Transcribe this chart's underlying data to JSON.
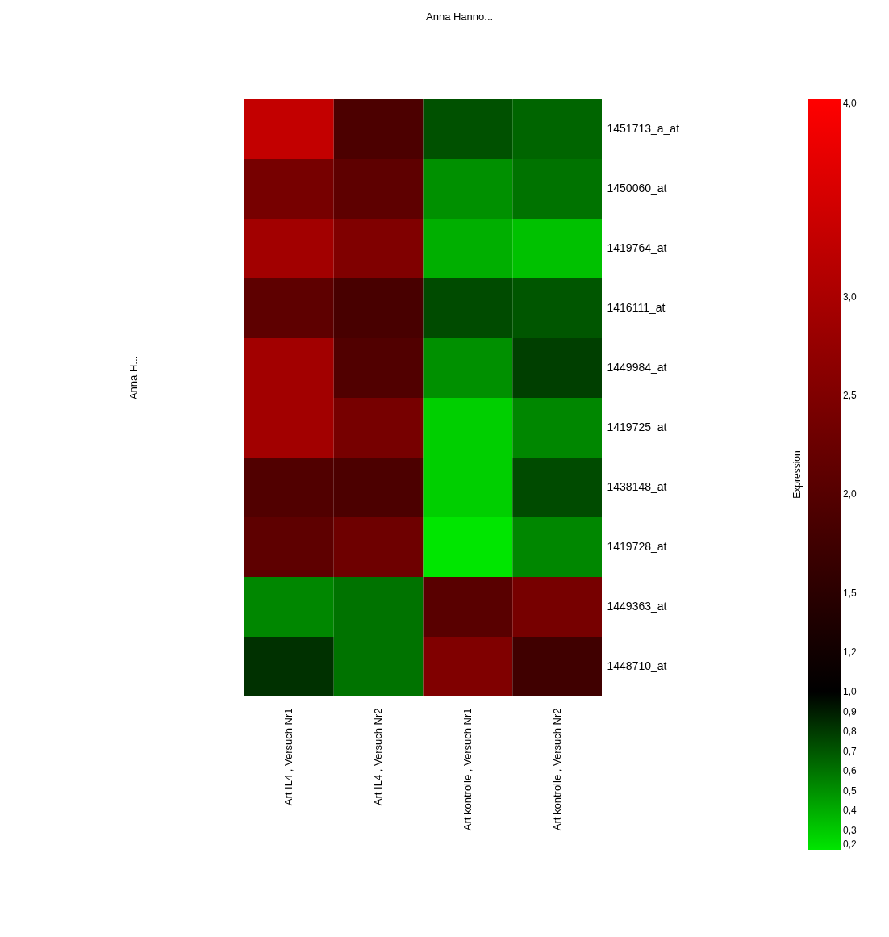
{
  "chart_data": {
    "type": "heatmap",
    "categories": [
      "Art IL4 , Versuch Nr1",
      "Art IL4 , Versuch Nr2",
      "Art kontrolle , Versuch Nr1",
      "Art kontrolle , Versuch Nr2"
    ],
    "y_categories": [
      "1451713_a_at",
      "1450060_at",
      "1419764_at",
      "1416111_at",
      "1449984_at",
      "1419725_at",
      "1438148_at",
      "1419728_at",
      "1449363_at",
      "1448710_at"
    ],
    "cells": [
      [
        3.3,
        1.9,
        0.72,
        0.65
      ],
      [
        2.4,
        2.1,
        0.5,
        0.6
      ],
      [
        2.9,
        2.5,
        0.39,
        0.33
      ],
      [
        2.1,
        1.85,
        0.74,
        0.7
      ],
      [
        2.9,
        1.95,
        0.5,
        0.78
      ],
      [
        2.9,
        2.4,
        0.28,
        0.53
      ],
      [
        1.95,
        1.9,
        0.28,
        0.74
      ],
      [
        2.1,
        2.3,
        0.2,
        0.53
      ],
      [
        0.53,
        0.6,
        2.05,
        2.4
      ],
      [
        0.83,
        0.6,
        2.5,
        1.75
      ]
    ],
    "clabel": "Expression",
    "clim": [
      0.2,
      4.0
    ],
    "cticks": [
      {
        "value": 4.0,
        "label": "4,0"
      },
      {
        "value": 3.0,
        "label": "3,0"
      },
      {
        "value": 2.5,
        "label": "2,5"
      },
      {
        "value": 2.0,
        "label": "2,0"
      },
      {
        "value": 1.5,
        "label": "1,5"
      },
      {
        "value": 1.2,
        "label": "1,2"
      },
      {
        "value": 1.0,
        "label": "1,0"
      },
      {
        "value": 0.9,
        "label": "0,9"
      },
      {
        "value": 0.8,
        "label": "0,8"
      },
      {
        "value": 0.7,
        "label": "0,7"
      },
      {
        "value": 0.6,
        "label": "0,6"
      },
      {
        "value": 0.5,
        "label": "0,5"
      },
      {
        "value": 0.4,
        "label": "0,4"
      },
      {
        "value": 0.3,
        "label": "0,3"
      },
      {
        "value": 0.2,
        "label": "0,2"
      }
    ],
    "annotations": [
      "Anna Hanno...",
      "Anna H..."
    ]
  }
}
